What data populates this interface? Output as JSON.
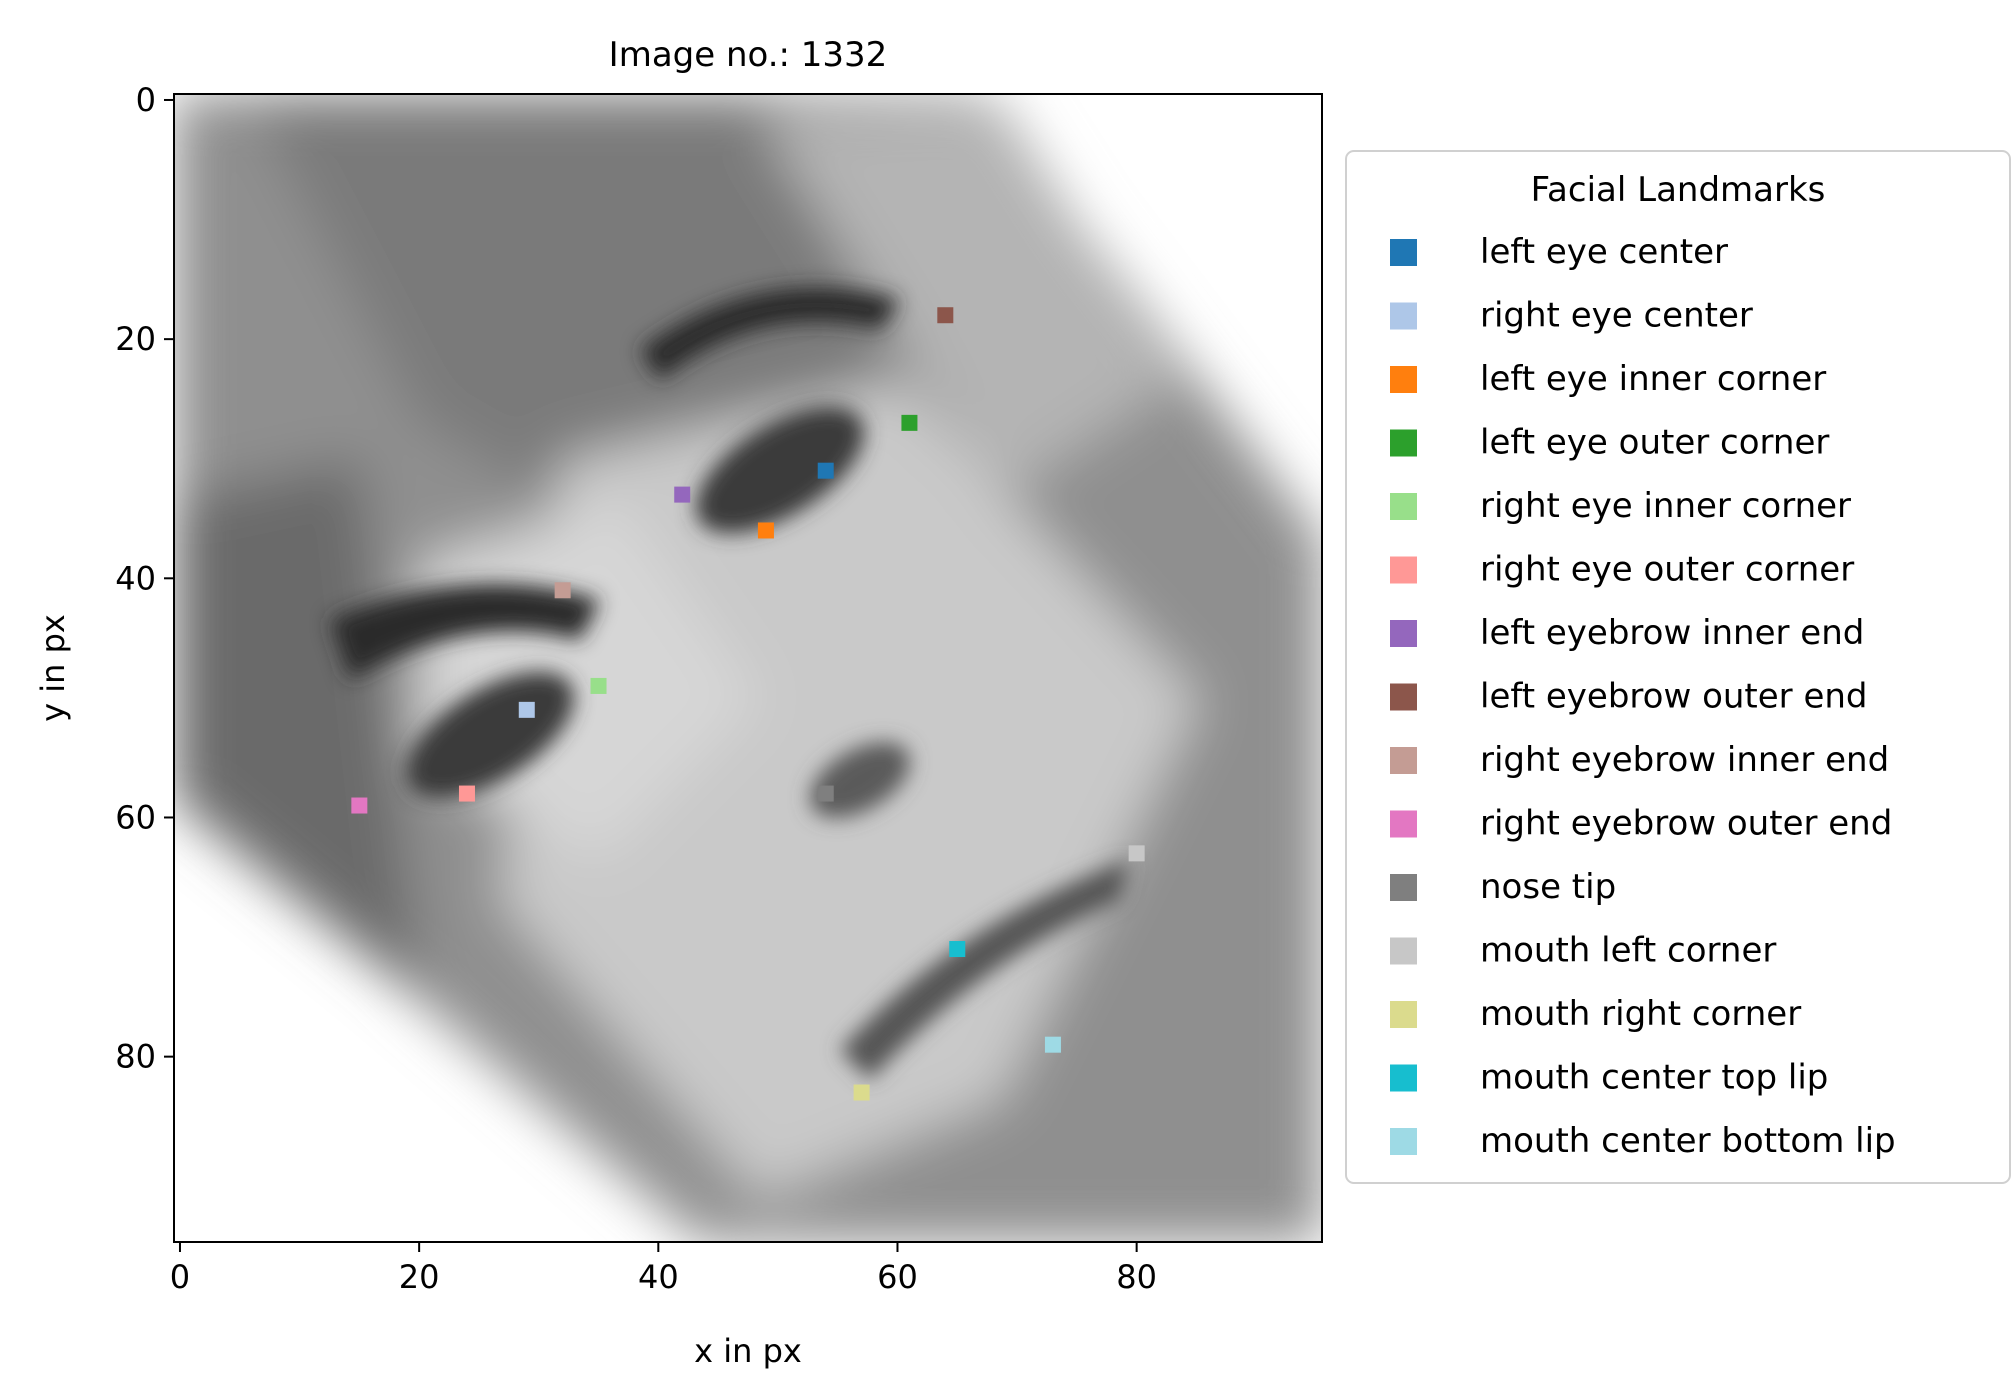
{
  "chart_data": {
    "type": "scatter",
    "title": "Image no.: 1332",
    "xlabel": "x in px",
    "ylabel": "y in px",
    "xlim": [
      -0.5,
      95.5
    ],
    "ylim": [
      95.5,
      -0.5
    ],
    "y_inverted": true,
    "x_ticks": [
      0,
      20,
      40,
      60,
      80
    ],
    "y_ticks": [
      0,
      20,
      40,
      60,
      80
    ],
    "x_tick_labels": [
      "0",
      "20",
      "40",
      "60",
      "80"
    ],
    "y_tick_labels": [
      "0",
      "20",
      "40",
      "60",
      "80"
    ],
    "background": "grayscale 96x96 face photograph, rotated about 40 degrees",
    "legend": {
      "title": "Facial Landmarks",
      "placement": "right, outside plot"
    },
    "series": [
      {
        "name": "left eye center",
        "color": "#1f77b4",
        "x": [
          54
        ],
        "y": [
          31
        ]
      },
      {
        "name": "right eye center",
        "color": "#aec7e8",
        "x": [
          29
        ],
        "y": [
          51
        ]
      },
      {
        "name": "left eye inner corner",
        "color": "#ff7f0e",
        "x": [
          49
        ],
        "y": [
          36
        ]
      },
      {
        "name": "left eye outer corner",
        "color": "#2ca02c",
        "x": [
          61
        ],
        "y": [
          27
        ]
      },
      {
        "name": "right eye inner corner",
        "color": "#98df8a",
        "x": [
          35
        ],
        "y": [
          49
        ]
      },
      {
        "name": "right eye outer corner",
        "color": "#ff9896",
        "x": [
          24
        ],
        "y": [
          58
        ]
      },
      {
        "name": "left eyebrow inner end",
        "color": "#9467bd",
        "x": [
          42
        ],
        "y": [
          33
        ]
      },
      {
        "name": "left eyebrow outer end",
        "color": "#8c564b",
        "x": [
          64
        ],
        "y": [
          18
        ]
      },
      {
        "name": "right eyebrow inner end",
        "color": "#c49c94",
        "x": [
          32
        ],
        "y": [
          41
        ]
      },
      {
        "name": "right eyebrow outer end",
        "color": "#e377c2",
        "x": [
          15
        ],
        "y": [
          59
        ]
      },
      {
        "name": "nose tip",
        "color": "#7f7f7f",
        "x": [
          54
        ],
        "y": [
          58
        ]
      },
      {
        "name": "mouth left corner",
        "color": "#c7c7c7",
        "x": [
          80
        ],
        "y": [
          63
        ]
      },
      {
        "name": "mouth right corner",
        "color": "#dbdb8d",
        "x": [
          57
        ],
        "y": [
          83
        ]
      },
      {
        "name": "mouth center top lip",
        "color": "#17becf",
        "x": [
          65
        ],
        "y": [
          71
        ]
      },
      {
        "name": "mouth center bottom lip",
        "color": "#9edae5",
        "x": [
          73
        ],
        "y": [
          79
        ]
      }
    ]
  }
}
